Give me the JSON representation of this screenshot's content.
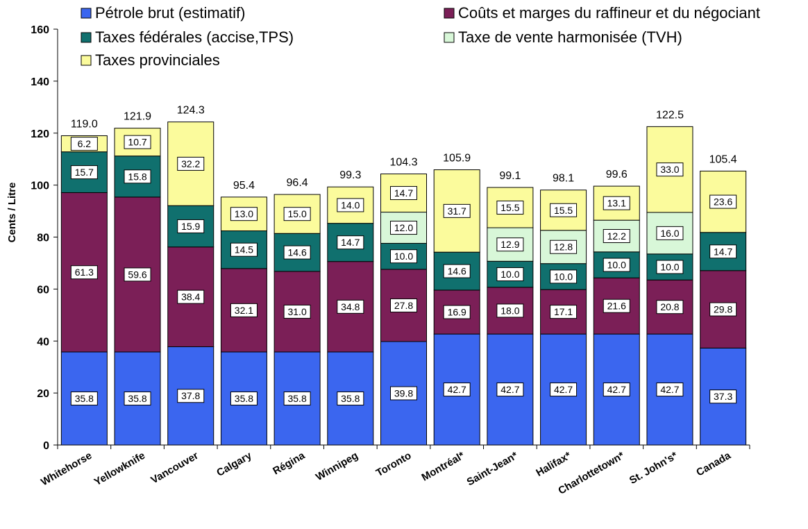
{
  "chart_data": {
    "type": "bar",
    "stacked": true,
    "xlabel": "",
    "ylabel": "Cents / Litre",
    "ylim": [
      0,
      160
    ],
    "yticks": [
      0,
      20,
      40,
      60,
      80,
      100,
      120,
      140,
      160
    ],
    "grid": false,
    "legend_position": "top",
    "categories": [
      "Whitehorse",
      "Yellowknife",
      "Vancouver",
      "Calgary",
      "Régina",
      "Winnipeg",
      "Toronto",
      "Montréal*",
      "Saint-Jean*",
      "Halifax*",
      "Charlottetown*",
      "St. John's*",
      "Canada"
    ],
    "series": [
      {
        "name": "Pétrole brut (estimatif)",
        "color": "#3b66ef",
        "values": [
          35.8,
          35.8,
          37.8,
          35.8,
          35.8,
          35.8,
          39.8,
          42.7,
          42.7,
          42.7,
          42.7,
          42.7,
          37.3
        ]
      },
      {
        "name": "Coûts et marges du raffineur et du négociant",
        "color": "#7b1f57",
        "values": [
          61.3,
          59.6,
          38.4,
          32.1,
          31.0,
          34.8,
          27.8,
          16.9,
          18.0,
          17.1,
          21.6,
          20.8,
          29.8
        ]
      },
      {
        "name": "Taxes fédérales (accise,TPS)",
        "color": "#10706e",
        "values": [
          15.7,
          15.8,
          15.9,
          14.5,
          14.6,
          14.7,
          10.0,
          14.6,
          10.0,
          10.0,
          10.0,
          10.0,
          14.7
        ]
      },
      {
        "name": "Taxe de vente harmonisée (TVH)",
        "color": "#d8f7d8",
        "values": [
          0,
          0,
          0,
          0,
          0,
          0,
          12.0,
          0,
          12.9,
          12.8,
          12.2,
          16.0,
          0
        ]
      },
      {
        "name": "Taxes provinciales",
        "color": "#fbfb9c",
        "values": [
          6.2,
          10.7,
          32.2,
          13.0,
          15.0,
          14.0,
          14.7,
          31.7,
          15.5,
          15.5,
          13.1,
          33.0,
          23.6
        ]
      }
    ],
    "totals": [
      119.0,
      121.9,
      124.3,
      95.4,
      96.4,
      99.3,
      104.3,
      105.9,
      99.1,
      98.1,
      99.6,
      122.5,
      105.4
    ]
  }
}
